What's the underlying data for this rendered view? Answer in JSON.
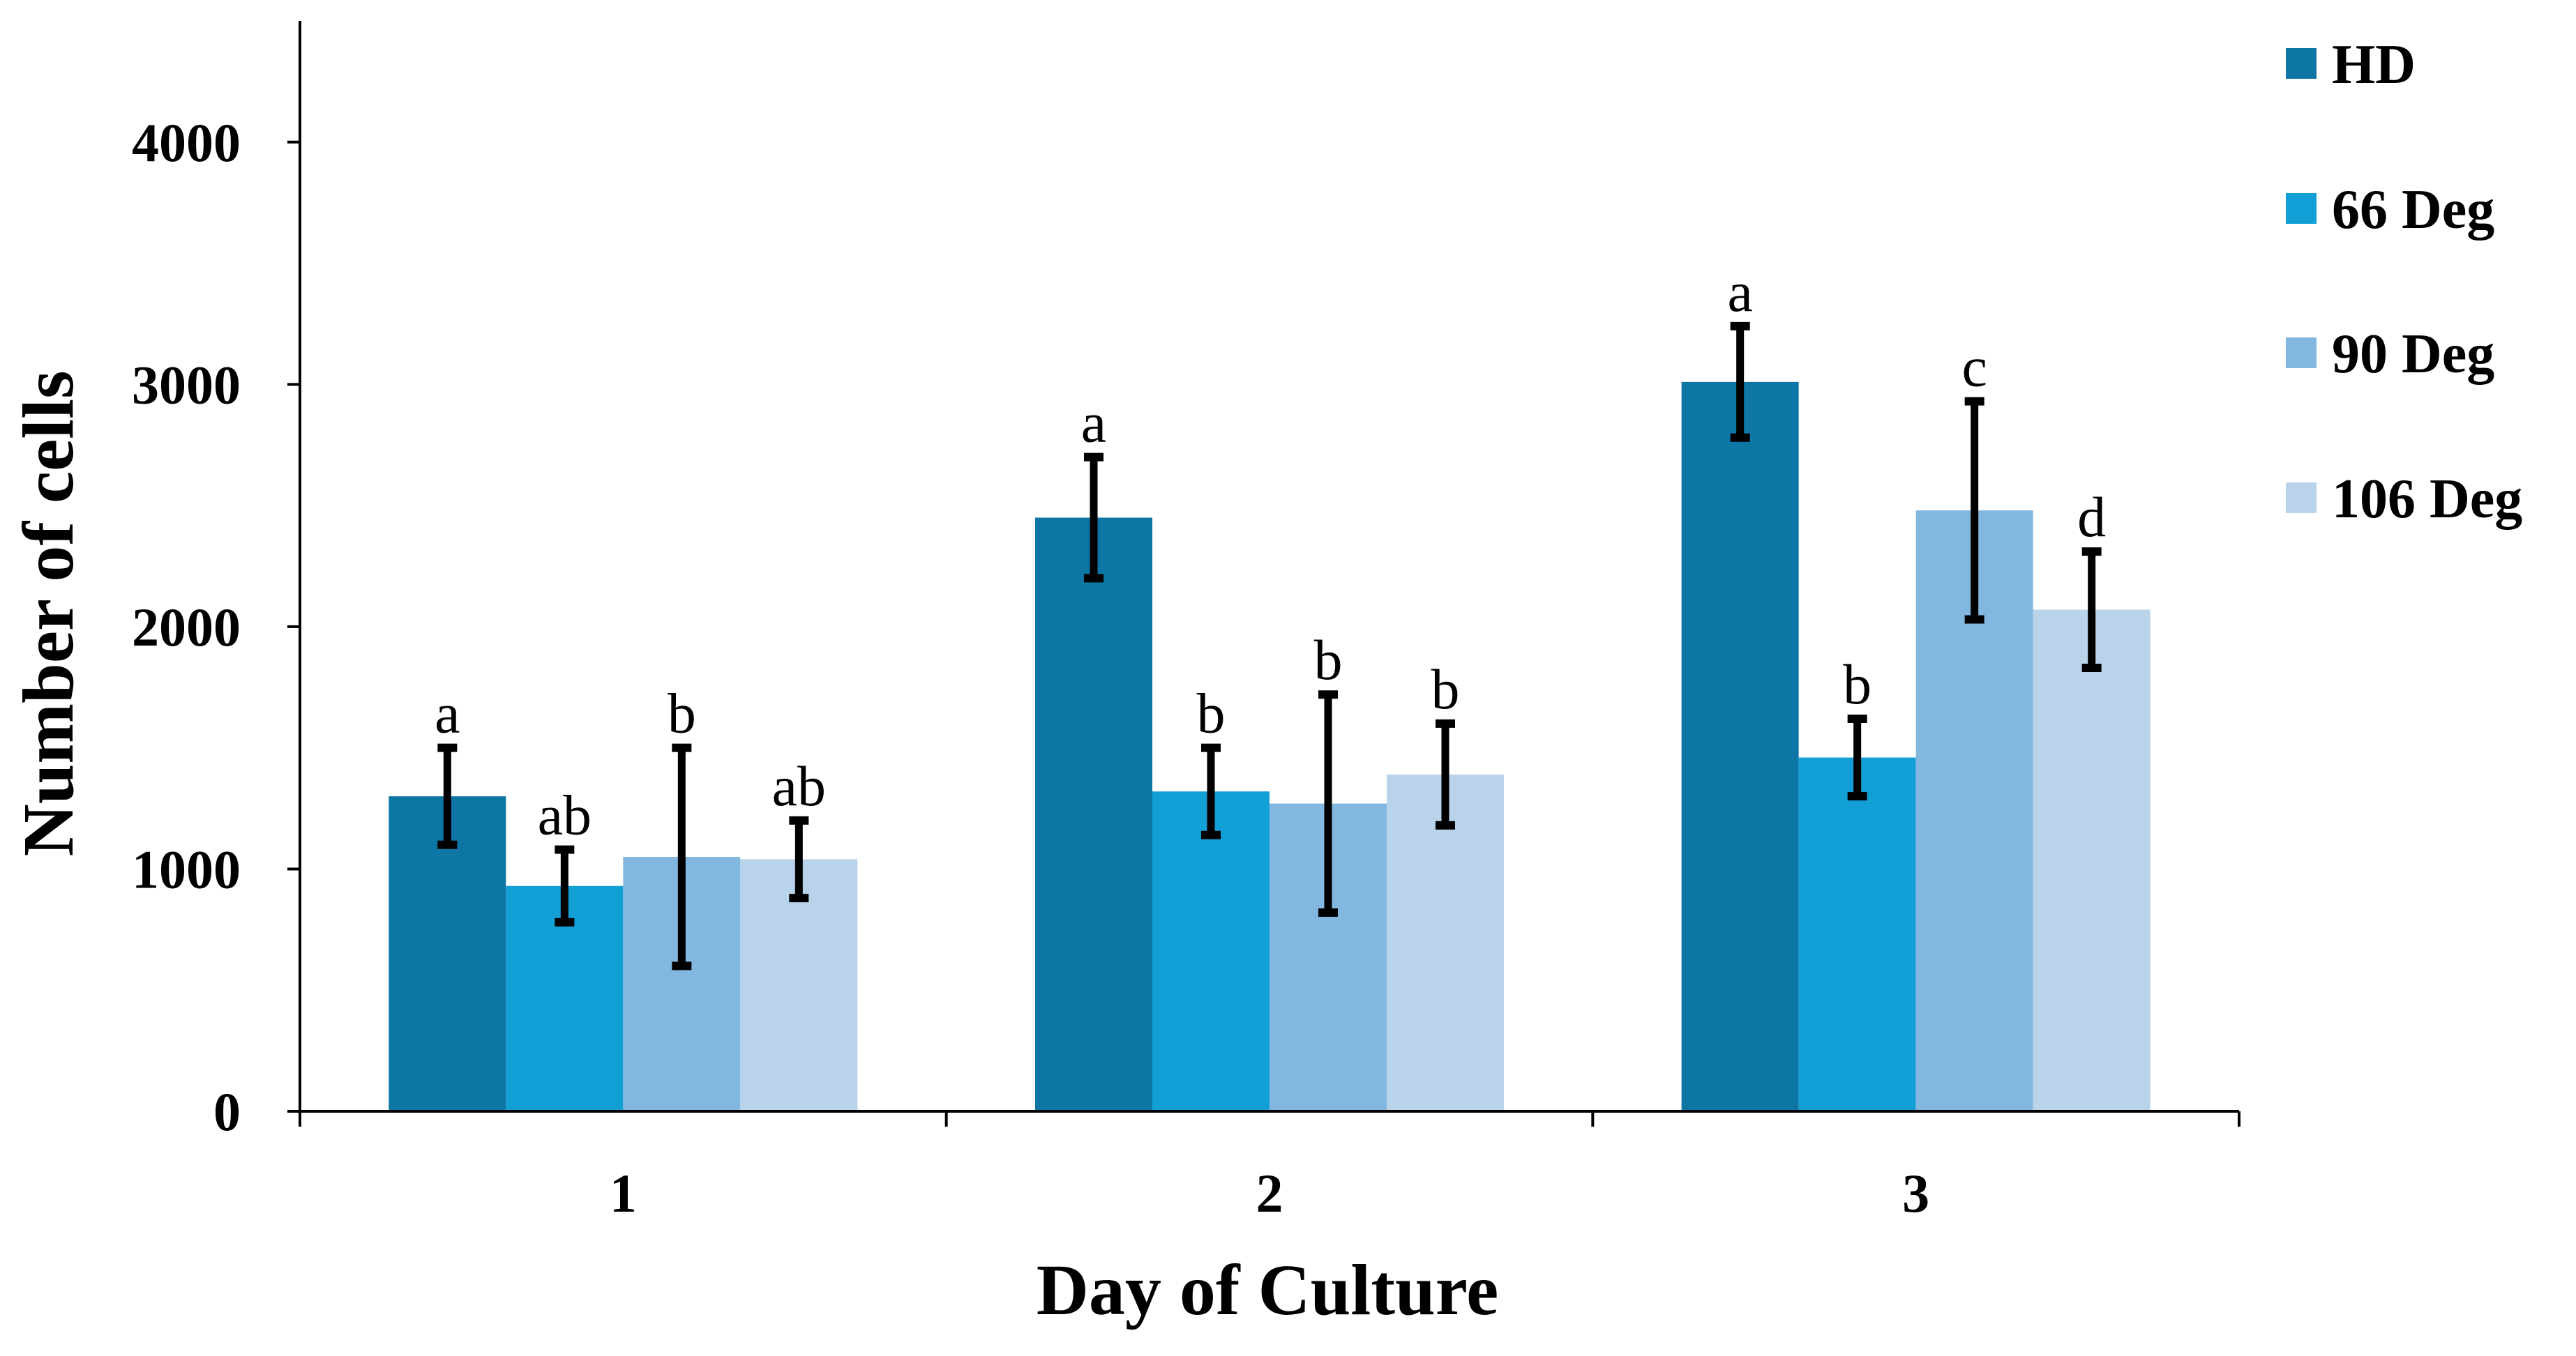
{
  "chart_data": {
    "type": "bar",
    "title": "",
    "xlabel": "Day of Culture",
    "ylabel": "Number of cells",
    "categories": [
      "1",
      "2",
      "3"
    ],
    "ylim": [
      0,
      4500
    ],
    "yticks": [
      0,
      1000,
      2000,
      3000,
      4000
    ],
    "ytick_labels": [
      "0",
      "1000",
      "2000",
      "3000",
      "4000"
    ],
    "grid": false,
    "legend_position": "top-right",
    "series": [
      {
        "name": "HD",
        "color": "#0e76a4",
        "values": [
          1300,
          2450,
          3010
        ],
        "errors": [
          200,
          250,
          230
        ],
        "significance": [
          "a",
          "a",
          "a"
        ]
      },
      {
        "name": "66 Deg",
        "color": "#129fd6",
        "values": [
          930,
          1320,
          1460
        ],
        "errors": [
          150,
          180,
          160
        ],
        "significance": [
          "ab",
          "b",
          "b"
        ]
      },
      {
        "name": "90 Deg",
        "color": "#82b8df",
        "values": [
          1050,
          1270,
          2480
        ],
        "errors": [
          450,
          450,
          450
        ],
        "significance": [
          "b",
          "b",
          "c"
        ]
      },
      {
        "name": "106 Deg",
        "color": "#b9d3ea",
        "values": [
          1040,
          1390,
          2070
        ],
        "errors": [
          160,
          210,
          240
        ],
        "significance": [
          "ab",
          "b",
          "d"
        ]
      }
    ]
  }
}
